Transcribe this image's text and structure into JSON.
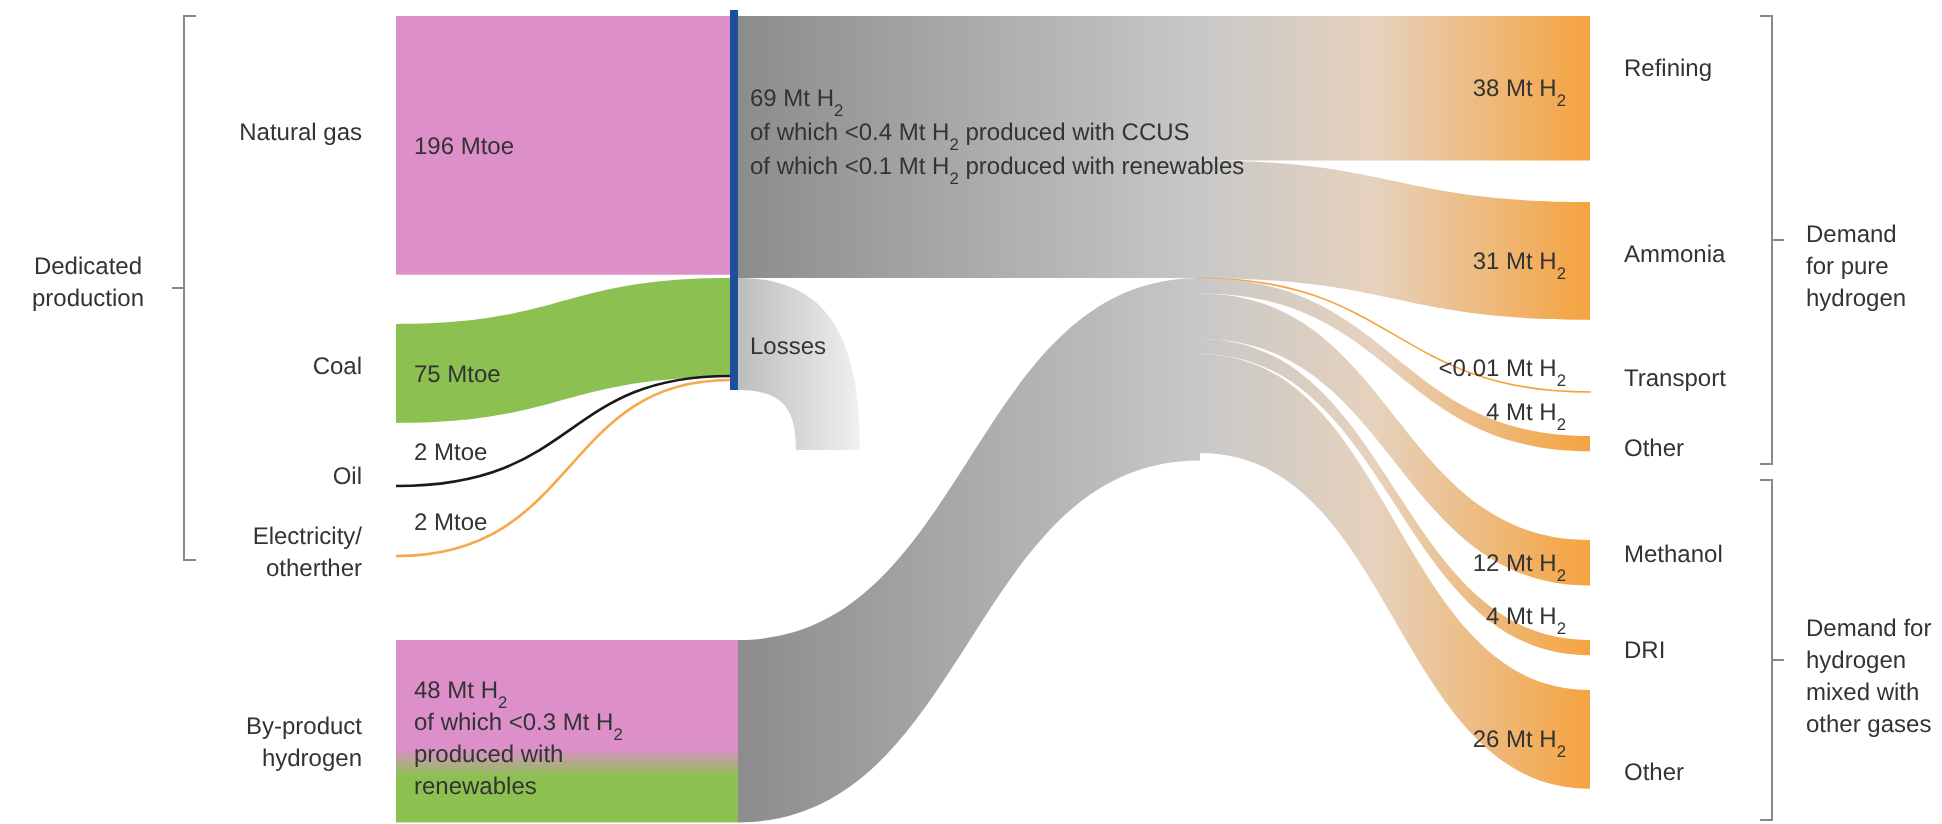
{
  "chart_data": {
    "type": "other",
    "categories": [
      "Natural gas",
      "Coal",
      "Oil",
      "Electricity/ otherther",
      "By-product hydrogen",
      "Refining",
      "Ammonia",
      "Transport",
      "Other",
      "Methanol",
      "DRI",
      "Other"
    ],
    "values": [
      196,
      75,
      2,
      2,
      48,
      38,
      31,
      0.01,
      4,
      12,
      4,
      26
    ],
    "value_labels": [
      "196 Mtoe",
      "75 Mtoe",
      "2 Mtoe",
      "2 Mtoe",
      "48 Mt H$_{2}$",
      "38 Mt H$_{2}$",
      "31 Mt H$_{2}$",
      "<0.01 Mt H$_{2}$",
      "4 Mt H$_{2}$",
      "12 Mt H$_{2}$",
      "4 Mt H$_{2}$",
      "26 Mt H$_{2}$"
    ],
    "colors": [
      "#dc8fc8",
      "#8cc152",
      "#1a1a1a",
      "#f6a84a",
      "#dc8fc8",
      "#f5a340",
      "#f5a340",
      "#f5a340",
      "#f5a340",
      "#f5a340",
      "#f5a340",
      "#f5a340"
    ],
    "annotations": [
      "Dedicated production",
      "Demand for pure hydrogen",
      "Demand for hydrogen mixed with other gases",
      "Losses",
      "69 Mt H$_{2}$",
      "of which <0.4 Mt H$_{2}$ produced with CCUS",
      "of which <0.1 Mt H$_{2}$ produced with renewables",
      "of which <0.3 Mt H$_{2}$ produced with renewables"
    ]
  }
}
